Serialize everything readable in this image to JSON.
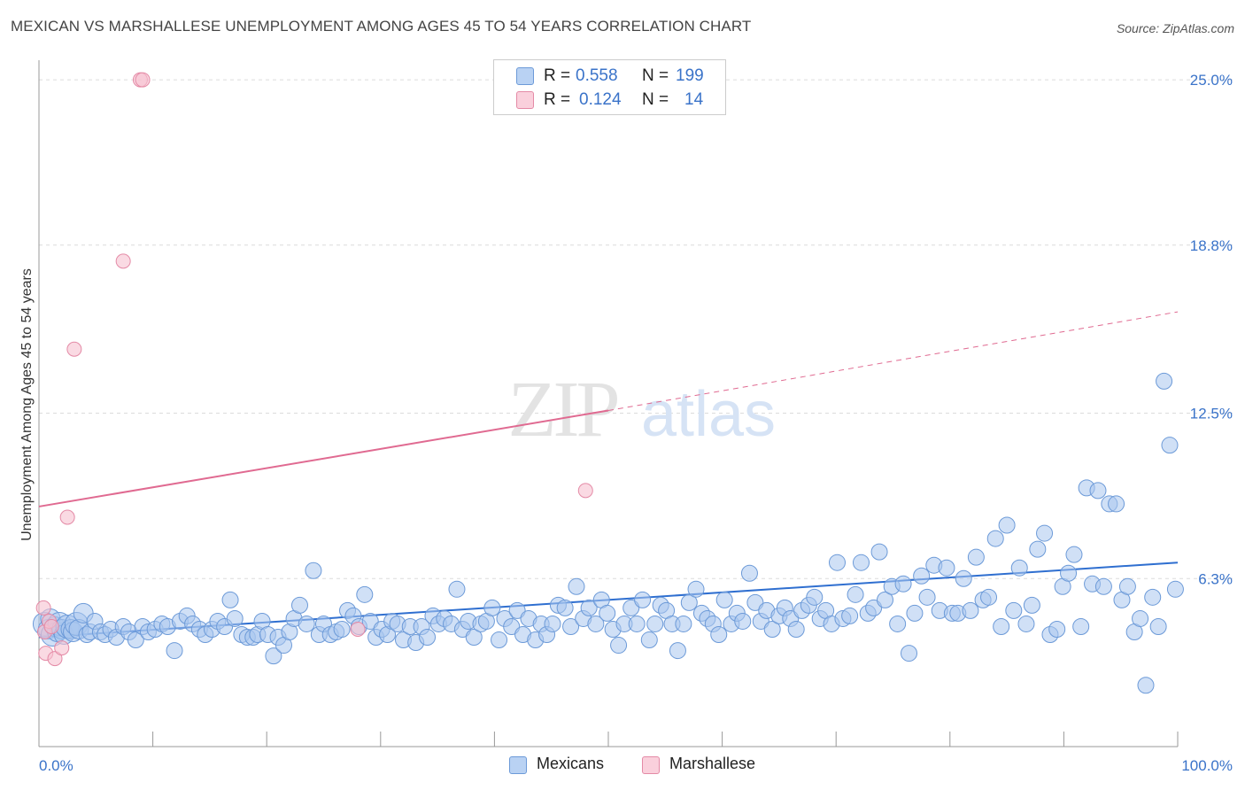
{
  "title": "MEXICAN VS MARSHALLESE UNEMPLOYMENT AMONG AGES 45 TO 54 YEARS CORRELATION CHART",
  "source": "Source: ZipAtlas.com",
  "watermark": {
    "zip": "ZIP",
    "atlas": "atlas"
  },
  "colors": {
    "blue_fill": "#a9c6ef",
    "blue_stroke": "#6c9ad8",
    "blue_line": "#2f6fd0",
    "pink_fill": "#f7c1d1",
    "pink_stroke": "#e48aa6",
    "pink_line": "#e06a91",
    "axis_text": "#3a73c9",
    "grid": "#dcdcdc"
  },
  "legend_top": [
    {
      "r_label": "R = ",
      "r_value": "0.558",
      "n_label": "N = ",
      "n_value": "199",
      "color": "blue"
    },
    {
      "r_label": "R = ",
      "r_value": "0.124",
      "n_label": "N = ",
      "n_value": "14",
      "color": "pink"
    }
  ],
  "legend_bottom": [
    {
      "label": "Mexicans",
      "color": "blue"
    },
    {
      "label": "Marshallese",
      "color": "pink"
    }
  ],
  "chart_data": {
    "type": "scatter",
    "title": "MEXICAN VS MARSHALLESE UNEMPLOYMENT AMONG AGES 45 TO 54 YEARS CORRELATION CHART",
    "xlabel": "",
    "ylabel": "Unemployment Among Ages 45 to 54 years",
    "xlim": [
      0,
      100
    ],
    "ylim": [
      0,
      25.6
    ],
    "x_tick_labels": [
      "0.0%",
      "100.0%"
    ],
    "y_ticks": [
      6.3,
      12.5,
      18.8,
      25.0
    ],
    "y_tick_labels": [
      "6.3%",
      "12.5%",
      "18.8%",
      "25.0%"
    ],
    "grid": true,
    "legend_position": "top-center",
    "series": [
      {
        "name": "Mexicans",
        "color": "blue",
        "R": 0.558,
        "N": 199,
        "trend": {
          "x": [
            0,
            100
          ],
          "y": [
            4.1,
            6.9
          ],
          "style": "solid"
        },
        "points": [
          [
            0.5,
            4.6
          ],
          [
            0.8,
            4.4
          ],
          [
            1.0,
            4.8
          ],
          [
            1.2,
            4.2
          ],
          [
            1.4,
            4.5
          ],
          [
            1.6,
            4.3
          ],
          [
            1.8,
            4.6
          ],
          [
            2.0,
            4.4
          ],
          [
            2.2,
            4.2
          ],
          [
            2.5,
            4.5
          ],
          [
            2.8,
            4.4
          ],
          [
            3.0,
            4.3
          ],
          [
            3.3,
            4.6
          ],
          [
            3.5,
            4.4
          ],
          [
            3.9,
            5.0
          ],
          [
            4.2,
            4.2
          ],
          [
            4.5,
            4.3
          ],
          [
            4.9,
            4.7
          ],
          [
            5.4,
            4.3
          ],
          [
            5.8,
            4.2
          ],
          [
            6.3,
            4.4
          ],
          [
            6.8,
            4.1
          ],
          [
            7.4,
            4.5
          ],
          [
            7.9,
            4.3
          ],
          [
            8.5,
            4.0
          ],
          [
            9.1,
            4.5
          ],
          [
            9.6,
            4.3
          ],
          [
            10.2,
            4.4
          ],
          [
            10.8,
            4.6
          ],
          [
            11.3,
            4.5
          ],
          [
            11.9,
            3.6
          ],
          [
            12.4,
            4.7
          ],
          [
            13.0,
            4.9
          ],
          [
            13.5,
            4.6
          ],
          [
            14.1,
            4.4
          ],
          [
            14.6,
            4.2
          ],
          [
            15.2,
            4.4
          ],
          [
            15.7,
            4.7
          ],
          [
            16.3,
            4.5
          ],
          [
            16.8,
            5.5
          ],
          [
            17.2,
            4.8
          ],
          [
            17.8,
            4.2
          ],
          [
            18.3,
            4.1
          ],
          [
            18.8,
            4.1
          ],
          [
            19.2,
            4.2
          ],
          [
            19.6,
            4.7
          ],
          [
            20.1,
            4.2
          ],
          [
            20.6,
            3.4
          ],
          [
            21.0,
            4.1
          ],
          [
            21.5,
            3.8
          ],
          [
            22.0,
            4.3
          ],
          [
            22.4,
            4.8
          ],
          [
            22.9,
            5.3
          ],
          [
            23.5,
            4.6
          ],
          [
            24.1,
            6.6
          ],
          [
            24.6,
            4.2
          ],
          [
            25.0,
            4.6
          ],
          [
            25.6,
            4.2
          ],
          [
            26.1,
            4.3
          ],
          [
            26.6,
            4.4
          ],
          [
            27.1,
            5.1
          ],
          [
            27.6,
            4.9
          ],
          [
            28.1,
            4.5
          ],
          [
            28.6,
            5.7
          ],
          [
            29.1,
            4.7
          ],
          [
            29.6,
            4.1
          ],
          [
            30.1,
            4.4
          ],
          [
            30.6,
            4.2
          ],
          [
            31.0,
            4.7
          ],
          [
            31.5,
            4.6
          ],
          [
            32.0,
            4.0
          ],
          [
            32.6,
            4.5
          ],
          [
            33.1,
            3.9
          ],
          [
            33.6,
            4.5
          ],
          [
            34.1,
            4.1
          ],
          [
            34.6,
            4.9
          ],
          [
            35.1,
            4.6
          ],
          [
            35.6,
            4.8
          ],
          [
            36.2,
            4.6
          ],
          [
            36.7,
            5.9
          ],
          [
            37.2,
            4.4
          ],
          [
            37.7,
            4.7
          ],
          [
            38.2,
            4.1
          ],
          [
            38.8,
            4.6
          ],
          [
            39.3,
            4.7
          ],
          [
            39.8,
            5.2
          ],
          [
            40.4,
            4.0
          ],
          [
            40.9,
            4.8
          ],
          [
            41.5,
            4.5
          ],
          [
            42.0,
            5.1
          ],
          [
            42.5,
            4.2
          ],
          [
            43.0,
            4.8
          ],
          [
            43.6,
            4.0
          ],
          [
            44.1,
            4.6
          ],
          [
            44.6,
            4.2
          ],
          [
            45.1,
            4.6
          ],
          [
            45.6,
            5.3
          ],
          [
            46.2,
            5.2
          ],
          [
            46.7,
            4.5
          ],
          [
            47.2,
            6.0
          ],
          [
            47.8,
            4.8
          ],
          [
            48.3,
            5.2
          ],
          [
            48.9,
            4.6
          ],
          [
            49.4,
            5.5
          ],
          [
            49.9,
            5.0
          ],
          [
            50.4,
            4.4
          ],
          [
            50.9,
            3.8
          ],
          [
            51.4,
            4.6
          ],
          [
            52.0,
            5.2
          ],
          [
            52.5,
            4.6
          ],
          [
            53.0,
            5.5
          ],
          [
            53.6,
            4.0
          ],
          [
            54.1,
            4.6
          ],
          [
            54.6,
            5.3
          ],
          [
            55.1,
            5.1
          ],
          [
            55.6,
            4.6
          ],
          [
            56.1,
            3.6
          ],
          [
            56.6,
            4.6
          ],
          [
            57.1,
            5.4
          ],
          [
            57.7,
            5.9
          ],
          [
            58.2,
            5.0
          ],
          [
            58.7,
            4.8
          ],
          [
            59.2,
            4.6
          ],
          [
            59.7,
            4.2
          ],
          [
            60.2,
            5.5
          ],
          [
            60.8,
            4.6
          ],
          [
            61.3,
            5.0
          ],
          [
            61.8,
            4.7
          ],
          [
            62.4,
            6.5
          ],
          [
            62.9,
            5.4
          ],
          [
            63.4,
            4.7
          ],
          [
            63.9,
            5.1
          ],
          [
            64.4,
            4.4
          ],
          [
            65.0,
            4.9
          ],
          [
            65.5,
            5.2
          ],
          [
            66.0,
            4.8
          ],
          [
            66.5,
            4.4
          ],
          [
            67.0,
            5.1
          ],
          [
            67.6,
            5.3
          ],
          [
            68.1,
            5.6
          ],
          [
            68.6,
            4.8
          ],
          [
            69.1,
            5.1
          ],
          [
            69.6,
            4.6
          ],
          [
            70.1,
            6.9
          ],
          [
            70.6,
            4.8
          ],
          [
            71.2,
            4.9
          ],
          [
            71.7,
            5.7
          ],
          [
            72.2,
            6.9
          ],
          [
            72.8,
            5.0
          ],
          [
            73.3,
            5.2
          ],
          [
            73.8,
            7.3
          ],
          [
            74.3,
            5.5
          ],
          [
            74.9,
            6.0
          ],
          [
            75.4,
            4.6
          ],
          [
            75.9,
            6.1
          ],
          [
            76.4,
            3.5
          ],
          [
            76.9,
            5.0
          ],
          [
            77.5,
            6.4
          ],
          [
            78.0,
            5.6
          ],
          [
            78.6,
            6.8
          ],
          [
            79.1,
            5.1
          ],
          [
            79.7,
            6.7
          ],
          [
            80.2,
            5.0
          ],
          [
            80.7,
            5.0
          ],
          [
            81.2,
            6.3
          ],
          [
            81.8,
            5.1
          ],
          [
            82.3,
            7.1
          ],
          [
            82.9,
            5.5
          ],
          [
            83.4,
            5.6
          ],
          [
            84.0,
            7.8
          ],
          [
            84.5,
            4.5
          ],
          [
            85.0,
            8.3
          ],
          [
            85.6,
            5.1
          ],
          [
            86.1,
            6.7
          ],
          [
            86.7,
            4.6
          ],
          [
            87.2,
            5.3
          ],
          [
            87.7,
            7.4
          ],
          [
            88.3,
            8.0
          ],
          [
            88.8,
            4.2
          ],
          [
            89.4,
            4.4
          ],
          [
            89.9,
            6.0
          ],
          [
            90.4,
            6.5
          ],
          [
            90.9,
            7.2
          ],
          [
            91.5,
            4.5
          ],
          [
            92.0,
            9.7
          ],
          [
            92.5,
            6.1
          ],
          [
            93.0,
            9.6
          ],
          [
            93.5,
            6.0
          ],
          [
            94.0,
            9.1
          ],
          [
            94.6,
            9.1
          ],
          [
            95.1,
            5.5
          ],
          [
            95.6,
            6.0
          ],
          [
            96.2,
            4.3
          ],
          [
            96.7,
            4.8
          ],
          [
            97.2,
            2.3
          ],
          [
            97.8,
            5.6
          ],
          [
            98.3,
            4.5
          ],
          [
            98.8,
            13.7
          ],
          [
            99.3,
            11.3
          ],
          [
            99.8,
            5.9
          ]
        ]
      },
      {
        "name": "Marshallese",
        "color": "pink",
        "R": 0.124,
        "N": 14,
        "trend": {
          "x": [
            0,
            50
          ],
          "y": [
            9.0,
            12.6
          ],
          "style": "solid",
          "extended": {
            "x": [
              50,
              100
            ],
            "y": [
              12.6,
              16.3
            ],
            "style": "dashed"
          }
        },
        "points": [
          [
            0.4,
            5.2
          ],
          [
            0.5,
            4.3
          ],
          [
            0.6,
            3.5
          ],
          [
            0.9,
            4.7
          ],
          [
            1.1,
            4.5
          ],
          [
            1.4,
            3.3
          ],
          [
            2.0,
            3.7
          ],
          [
            2.5,
            8.6
          ],
          [
            3.1,
            14.9
          ],
          [
            7.4,
            18.2
          ],
          [
            8.9,
            25.0
          ],
          [
            9.1,
            25.0
          ],
          [
            28.0,
            4.4
          ],
          [
            48.0,
            9.6
          ]
        ]
      }
    ]
  }
}
